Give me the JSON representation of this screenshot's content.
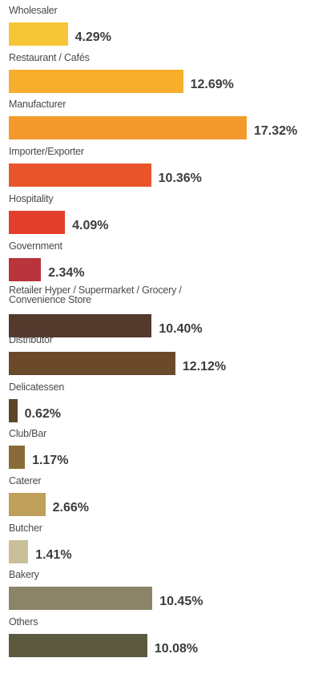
{
  "chart_data": {
    "type": "bar",
    "orientation": "horizontal",
    "categories": [
      "Wholesaler",
      "Restaurant / Cafés",
      "Manufacturer",
      "Importer/Exporter",
      "Hospitality",
      "Government",
      "Retailer  Hyper / Supermarket / Grocery / Convenience Store",
      "Distributor",
      "Delicatessen",
      "Club/Bar",
      "Caterer",
      "Butcher",
      "Bakery",
      "Others"
    ],
    "values": [
      4.29,
      12.69,
      17.32,
      10.36,
      4.09,
      2.34,
      10.4,
      12.12,
      0.62,
      1.17,
      2.66,
      1.41,
      10.45,
      10.08
    ],
    "value_labels": [
      "4.29%",
      "12.69%",
      "17.32%",
      "10.36%",
      "4.09%",
      "2.34%",
      "10.40%",
      "12.12%",
      "0.62%",
      "1.17%",
      "2.66%",
      "1.41%",
      "10.45%",
      "10.08%"
    ],
    "colors": [
      "#f6c637",
      "#f7ae2c",
      "#f49a2c",
      "#e9552b",
      "#e23f2c",
      "#b9343d",
      "#54392d",
      "#6b4a2c",
      "#5e452a",
      "#8a6a36",
      "#bea05a",
      "#c9bf98",
      "#8b8468",
      "#5c5a3e"
    ],
    "xlim": [
      0,
      17.32
    ],
    "unit": "%",
    "grid": false,
    "legend": "none",
    "title": "",
    "xlabel": "",
    "ylabel": ""
  }
}
